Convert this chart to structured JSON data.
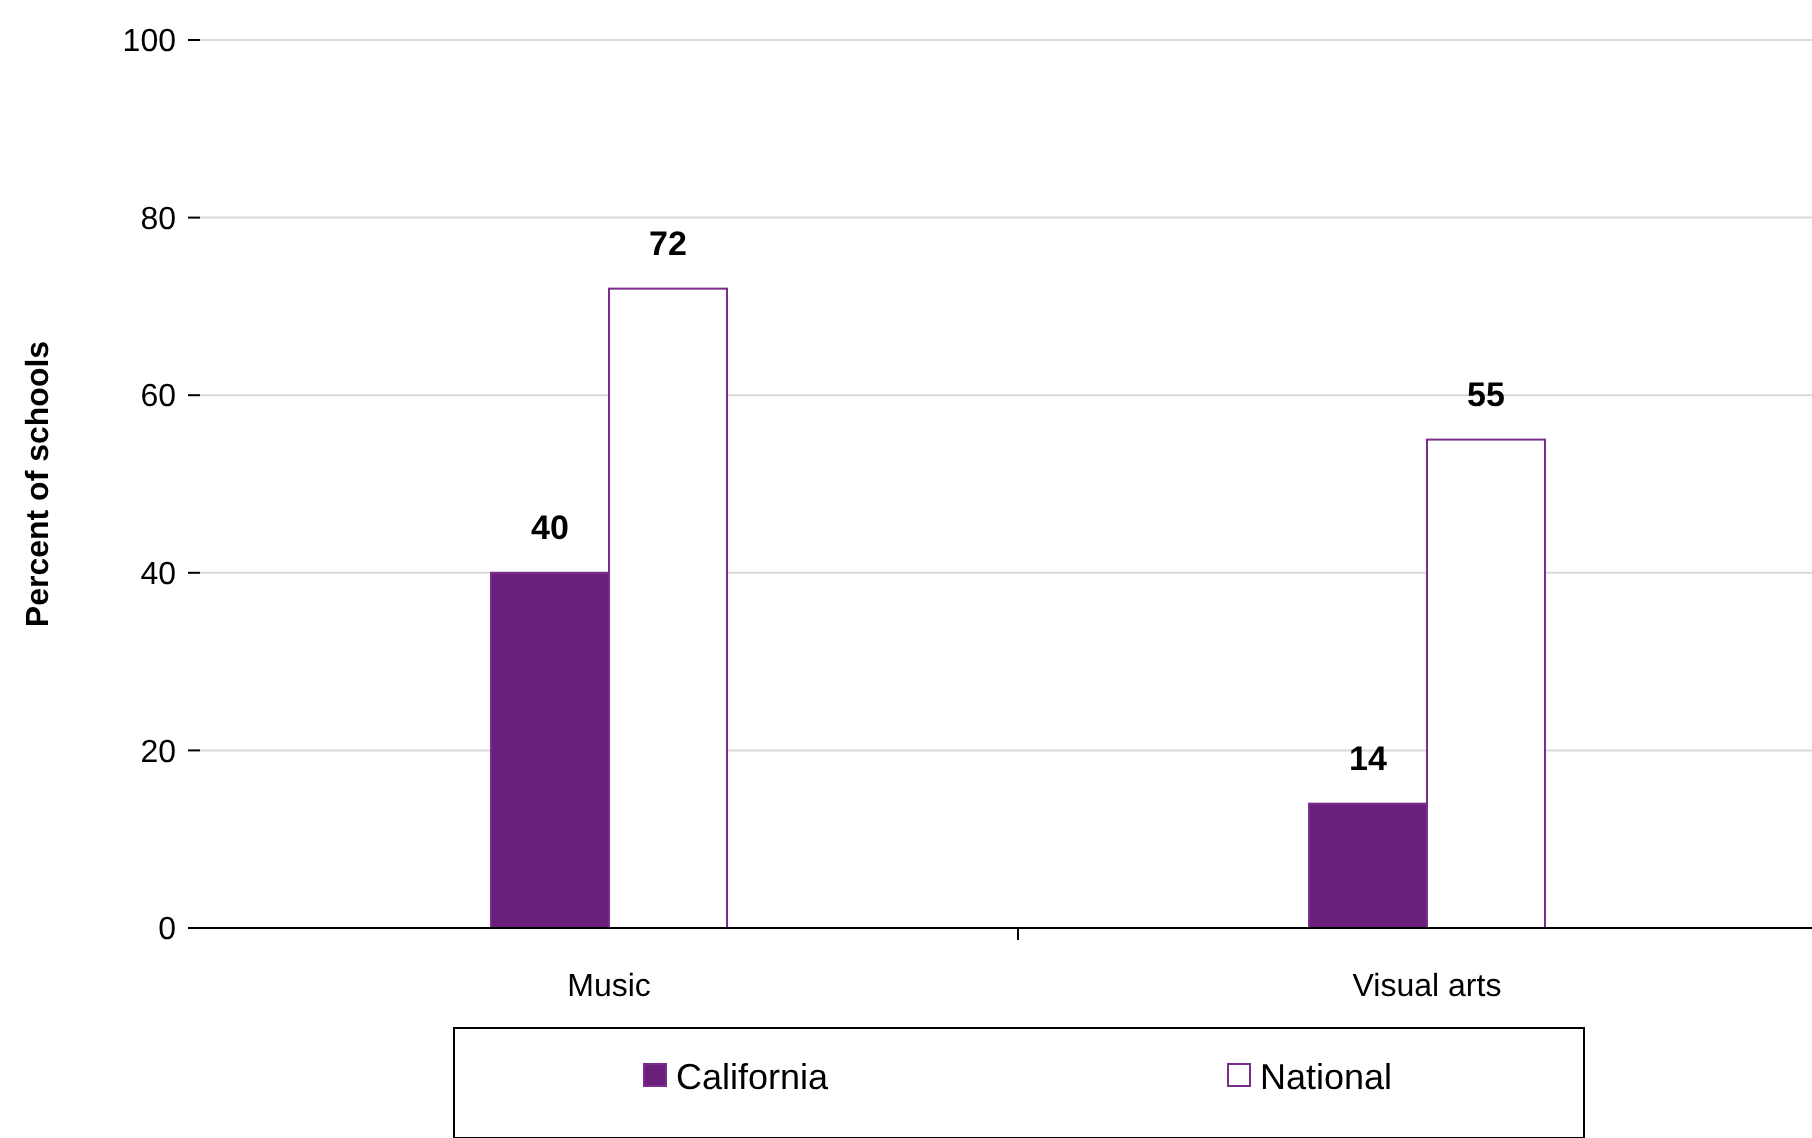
{
  "chart_data": {
    "type": "bar",
    "ylabel": "Percent of schools",
    "categories": [
      "Music",
      "Visual arts"
    ],
    "series": [
      {
        "name": "California",
        "color": "#6b1f7c",
        "values": [
          40,
          14
        ]
      },
      {
        "name": "National",
        "color": "#ffffff",
        "values": [
          72,
          55
        ]
      }
    ],
    "ylim": [
      0,
      100
    ],
    "yticks": [
      0,
      20,
      40,
      60,
      80,
      100
    ],
    "grid": "y",
    "legend": "bottom",
    "data_labels": true
  }
}
